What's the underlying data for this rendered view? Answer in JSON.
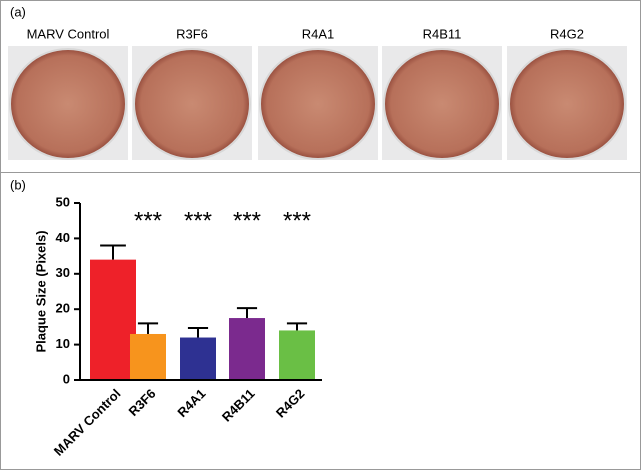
{
  "panel_a": {
    "label": "(a)",
    "plates": [
      "MARV Control",
      "R3F6",
      "R4A1",
      "R4B11",
      "R4G2"
    ]
  },
  "chart_data": {
    "type": "bar",
    "panel_label": "(b)",
    "y_label": "Plaque Size (Pixels)",
    "categories": [
      "MARV Control",
      "R3F6",
      "R4A1",
      "R4B11",
      "R4G2"
    ],
    "values": [
      34,
      13,
      12,
      17.5,
      14
    ],
    "errors": [
      4,
      3,
      2.7,
      2.8,
      2
    ],
    "colors": [
      "#ee2129",
      "#f7941d",
      "#2e3192",
      "#7b2a8e",
      "#6abf45"
    ],
    "annotations": [
      null,
      "***",
      "***",
      "***",
      "***"
    ],
    "ylim": [
      0,
      50
    ],
    "yticks": [
      0,
      10,
      20,
      30,
      40,
      50
    ]
  }
}
